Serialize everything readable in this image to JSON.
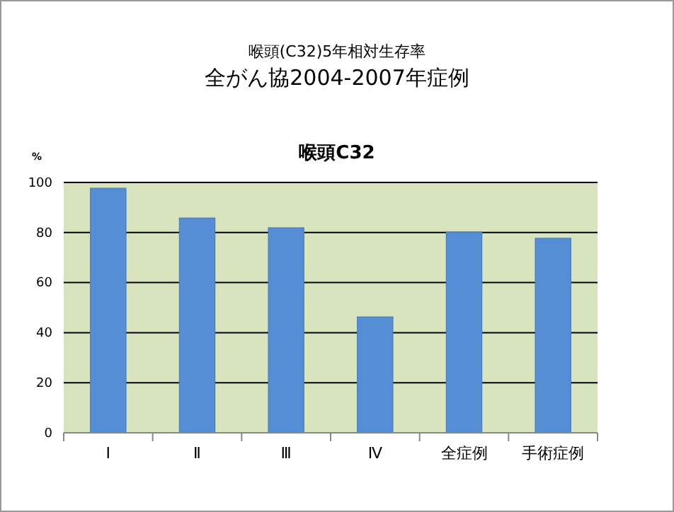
{
  "chart_data": {
    "type": "bar",
    "subtitle": "喉頭(C32)5年相対生存率",
    "title": "全がん協2004-2007年症例",
    "xlabel": "喉頭C32",
    "ylabel": "%",
    "categories": [
      "Ⅰ",
      "Ⅱ",
      "Ⅲ",
      "Ⅳ",
      "全症例",
      "手術症例"
    ],
    "values": [
      97.7,
      85.8,
      81.9,
      46.3,
      80.2,
      77.7
    ],
    "color": "#558ed5",
    "ylim": [
      0,
      100
    ],
    "yticks": [
      0,
      20,
      40,
      60,
      80,
      100
    ],
    "grid": "y"
  }
}
